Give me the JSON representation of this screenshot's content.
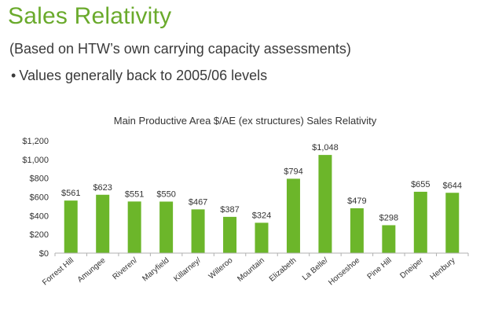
{
  "slide": {
    "title": "Sales Relativity",
    "subtitle": "(Based on HTW’s own carrying capacity assessments)",
    "bullet": "Values generally back to 2005/06 levels",
    "bullet_marker": "•"
  },
  "colors": {
    "title": "#6aaa2c",
    "bar": "#6cb62a",
    "axis": "#b0b0b0"
  },
  "chart_data": {
    "type": "bar",
    "title": "Main Productive Area $/AE (ex structures) Sales Relativity",
    "xlabel": "",
    "ylabel": "",
    "ylim": [
      0,
      1200
    ],
    "yticks": [
      0,
      200,
      400,
      600,
      800,
      1000,
      1200
    ],
    "ytick_labels": [
      "$0",
      "$200",
      "$400",
      "$600",
      "$800",
      "$1,000",
      "$1,200"
    ],
    "grid": false,
    "categories": [
      "Forrest Hill",
      "Amungee",
      "Riveren/",
      "Maryfield",
      "Killarney/",
      "Willeroo",
      "Mountain",
      "Elizabeth",
      "La Belle/",
      "Horseshoe",
      "Pine Hill",
      "Dneiper",
      "Henbury"
    ],
    "values": [
      561,
      623,
      551,
      550,
      467,
      387,
      324,
      794,
      1048,
      479,
      298,
      655,
      644
    ],
    "data_labels": [
      "$561",
      "$623",
      "$551",
      "$550",
      "$467",
      "$387",
      "$324",
      "$794",
      "$1,048",
      "$479",
      "$298",
      "$655",
      "$644"
    ]
  }
}
